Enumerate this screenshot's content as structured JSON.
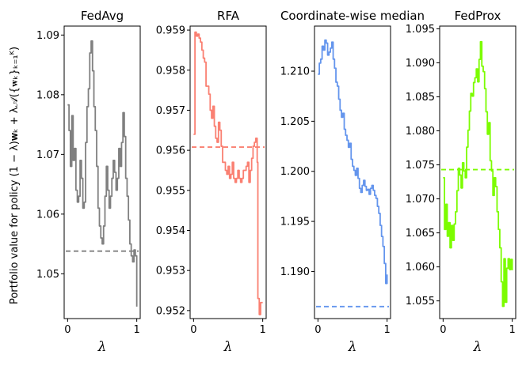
{
  "figure": {
    "ylabel": "Portfolio value for policy (1 − λ)𝐰ₖ + λ𝒜({𝐰ₖ}ₖ₌₁ᴷ)"
  },
  "chart_data": [
    {
      "type": "line",
      "title": "FedAvg",
      "xlabel": "λ",
      "color": "#808080",
      "xlim": [
        -0.05,
        1.05
      ],
      "ylim": [
        1.0425,
        1.0915
      ],
      "xticks": [
        0,
        1
      ],
      "xtick_labels": [
        "0",
        "1"
      ],
      "yticks": [
        1.05,
        1.06,
        1.07,
        1.08,
        1.09
      ],
      "ytick_labels": [
        "1.05",
        "1.06",
        "1.07",
        "1.08",
        "1.09"
      ],
      "baseline": 1.0538,
      "series": [
        {
          "name": "FedAvg",
          "x": [
            0,
            0.02,
            0.04,
            0.06,
            0.08,
            0.1,
            0.12,
            0.14,
            0.16,
            0.18,
            0.2,
            0.22,
            0.24,
            0.26,
            0.28,
            0.3,
            0.32,
            0.34,
            0.36,
            0.38,
            0.4,
            0.42,
            0.44,
            0.46,
            0.48,
            0.5,
            0.52,
            0.54,
            0.56,
            0.58,
            0.6,
            0.62,
            0.64,
            0.66,
            0.68,
            0.7,
            0.72,
            0.74,
            0.76,
            0.78,
            0.8,
            0.82,
            0.84,
            0.86,
            0.88,
            0.9,
            0.92,
            0.94,
            0.96,
            0.98,
            1.0
          ],
          "values": [
            1.0783,
            1.074,
            1.068,
            1.0765,
            1.069,
            1.071,
            1.064,
            1.062,
            1.063,
            1.069,
            1.066,
            1.061,
            1.062,
            1.072,
            1.078,
            1.081,
            1.087,
            1.089,
            1.084,
            1.078,
            1.074,
            1.068,
            1.061,
            1.058,
            1.056,
            1.055,
            1.058,
            1.063,
            1.068,
            1.064,
            1.061,
            1.063,
            1.066,
            1.069,
            1.067,
            1.064,
            1.066,
            1.071,
            1.068,
            1.072,
            1.077,
            1.073,
            1.066,
            1.063,
            1.059,
            1.055,
            1.053,
            1.052,
            1.054,
            1.053,
            1.0445
          ]
        }
      ]
    },
    {
      "type": "line",
      "title": "RFA",
      "xlabel": "λ",
      "color": "#fa8072",
      "xlim": [
        -0.05,
        1.05
      ],
      "ylim": [
        0.9518,
        0.9591
      ],
      "xticks": [
        0,
        1
      ],
      "xtick_labels": [
        "0",
        "1"
      ],
      "yticks": [
        0.952,
        0.953,
        0.954,
        0.955,
        0.956,
        0.957,
        0.958,
        0.959
      ],
      "ytick_labels": [
        "0.952",
        "0.953",
        "0.954",
        "0.955",
        "0.956",
        "0.957",
        "0.958",
        "0.959"
      ],
      "baseline": 0.95608,
      "series": [
        {
          "name": "RFA",
          "x": [
            0,
            0.01,
            0.02,
            0.04,
            0.06,
            0.08,
            0.1,
            0.12,
            0.14,
            0.16,
            0.18,
            0.2,
            0.22,
            0.24,
            0.26,
            0.28,
            0.3,
            0.32,
            0.34,
            0.36,
            0.38,
            0.4,
            0.42,
            0.44,
            0.46,
            0.48,
            0.5,
            0.52,
            0.54,
            0.56,
            0.58,
            0.6,
            0.62,
            0.64,
            0.66,
            0.68,
            0.7,
            0.72,
            0.74,
            0.76,
            0.78,
            0.8,
            0.82,
            0.84,
            0.86,
            0.88,
            0.9,
            0.92,
            0.93,
            0.95,
            0.97,
            1.0
          ],
          "values": [
            0.9564,
            0.9564,
            0.95895,
            0.95885,
            0.9589,
            0.9588,
            0.9587,
            0.9585,
            0.9583,
            0.9582,
            0.9576,
            0.9576,
            0.9574,
            0.957,
            0.9568,
            0.9571,
            0.9566,
            0.9563,
            0.9562,
            0.9567,
            0.9565,
            0.9561,
            0.9557,
            0.9557,
            0.9555,
            0.9554,
            0.9556,
            0.9553,
            0.9554,
            0.9557,
            0.9553,
            0.9552,
            0.9553,
            0.9555,
            0.9553,
            0.9552,
            0.9553,
            0.9555,
            0.9555,
            0.9556,
            0.9557,
            0.9552,
            0.9555,
            0.9558,
            0.9561,
            0.9562,
            0.9563,
            0.9557,
            0.9523,
            0.9519,
            0.9522,
            0.9522
          ]
        }
      ]
    },
    {
      "type": "line",
      "title": "Coordinate-wise median",
      "xlabel": "λ",
      "color": "#6495ed",
      "xlim": [
        -0.05,
        1.05
      ],
      "ylim": [
        1.1853,
        1.2145
      ],
      "xticks": [
        0,
        1
      ],
      "xtick_labels": [
        "0",
        "1"
      ],
      "yticks": [
        1.19,
        1.195,
        1.2,
        1.205,
        1.21
      ],
      "ytick_labels": [
        "1.190",
        "1.195",
        "1.200",
        "1.205",
        "1.210"
      ],
      "baseline": 1.1865,
      "series": [
        {
          "name": "Coordinate-wise median",
          "x": [
            0,
            0.02,
            0.04,
            0.06,
            0.08,
            0.1,
            0.12,
            0.14,
            0.16,
            0.18,
            0.2,
            0.22,
            0.24,
            0.26,
            0.28,
            0.3,
            0.32,
            0.34,
            0.36,
            0.38,
            0.4,
            0.42,
            0.44,
            0.46,
            0.48,
            0.5,
            0.52,
            0.54,
            0.56,
            0.58,
            0.6,
            0.62,
            0.64,
            0.66,
            0.68,
            0.7,
            0.72,
            0.74,
            0.76,
            0.78,
            0.8,
            0.82,
            0.84,
            0.86,
            0.88,
            0.9,
            0.92,
            0.94,
            0.96,
            0.98,
            1.0
          ],
          "values": [
            1.2097,
            1.2108,
            1.2112,
            1.2125,
            1.2121,
            1.2131,
            1.2128,
            1.2116,
            1.2119,
            1.2123,
            1.2129,
            1.2112,
            1.2103,
            1.2089,
            1.2085,
            1.2072,
            1.2061,
            1.2054,
            1.2058,
            1.2042,
            1.2036,
            1.2031,
            1.2024,
            1.2028,
            1.2012,
            1.2005,
            1.2001,
            1.1996,
            1.2003,
            1.1993,
            1.1983,
            1.1979,
            1.1986,
            1.1991,
            1.1985,
            1.1981,
            1.1982,
            1.1977,
            1.1983,
            1.1986,
            1.1981,
            1.1976,
            1.1973,
            1.1965,
            1.1958,
            1.1946,
            1.1935,
            1.1925,
            1.1908,
            1.1888,
            1.1897
          ]
        }
      ]
    },
    {
      "type": "line",
      "title": "FedProx",
      "xlabel": "λ",
      "color": "#7cfc00",
      "xlim": [
        -0.05,
        1.05
      ],
      "ylim": [
        1.0524,
        1.0954
      ],
      "xticks": [
        0,
        1
      ],
      "xtick_labels": [
        "0",
        "1"
      ],
      "yticks": [
        1.055,
        1.06,
        1.065,
        1.07,
        1.075,
        1.08,
        1.085,
        1.09,
        1.095
      ],
      "ytick_labels": [
        "1.055",
        "1.060",
        "1.065",
        "1.070",
        "1.075",
        "1.080",
        "1.085",
        "1.090",
        "1.095"
      ],
      "baseline": 1.0743,
      "series": [
        {
          "name": "FedProx",
          "x": [
            0,
            0.02,
            0.04,
            0.06,
            0.08,
            0.1,
            0.12,
            0.14,
            0.16,
            0.18,
            0.2,
            0.22,
            0.24,
            0.26,
            0.28,
            0.3,
            0.32,
            0.34,
            0.36,
            0.38,
            0.4,
            0.42,
            0.44,
            0.46,
            0.48,
            0.5,
            0.52,
            0.54,
            0.56,
            0.58,
            0.6,
            0.62,
            0.64,
            0.66,
            0.68,
            0.7,
            0.72,
            0.74,
            0.76,
            0.78,
            0.8,
            0.82,
            0.84,
            0.86,
            0.88,
            0.9,
            0.92,
            0.94,
            0.96,
            0.98,
            1.0
          ],
          "values": [
            1.0731,
            1.0655,
            1.0692,
            1.0645,
            1.0665,
            1.0628,
            1.0661,
            1.0639,
            1.0663,
            1.0681,
            1.0712,
            1.0745,
            1.0735,
            1.0716,
            1.0753,
            1.0741,
            1.0731,
            1.0776,
            1.0801,
            1.0829,
            1.0855,
            1.0851,
            1.0871,
            1.0878,
            1.0891,
            1.0872,
            1.0905,
            1.0931,
            1.0895,
            1.0887,
            1.0862,
            1.0828,
            1.0795,
            1.0812,
            1.0756,
            1.0741,
            1.0705,
            1.0731,
            1.0718,
            1.0681,
            1.0655,
            1.0628,
            1.0578,
            1.0542,
            1.0612,
            1.0548,
            1.0598,
            1.0612,
            1.0596,
            1.0611,
            1.0595
          ]
        }
      ]
    }
  ]
}
